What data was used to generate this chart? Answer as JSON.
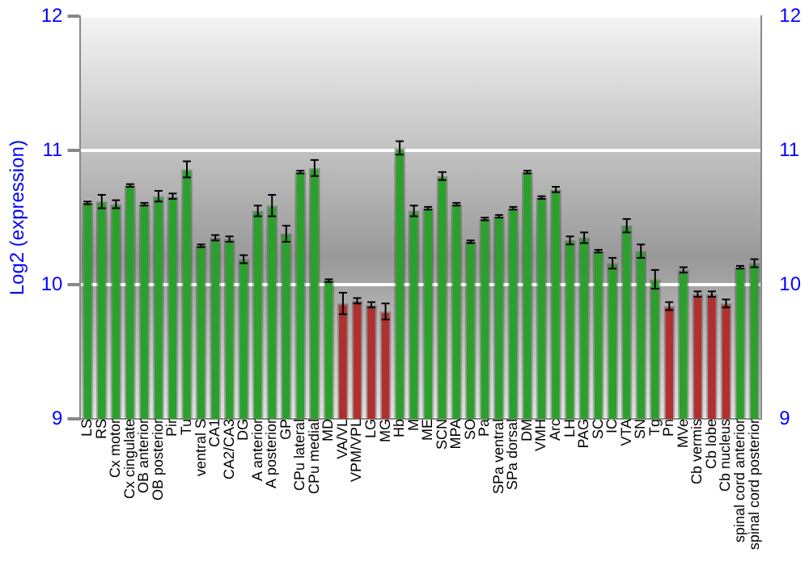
{
  "chart_data": {
    "type": "bar",
    "ylabel": "Log2 (expression)",
    "categories": [
      "LS",
      "RS",
      "Cx motor",
      "Cx cingulate",
      "OB anterior",
      "OB posterior",
      "Pir",
      "Tu",
      "ventral S",
      "CA1",
      "CA2/CA3",
      "DG",
      "A anterior",
      "A posterior",
      "GP",
      "CPu lateral",
      "CPu medial",
      "MD",
      "VA/VL",
      "VPM/VPL",
      "LG",
      "MG",
      "Hb",
      "M",
      "ME",
      "SCN",
      "MPA",
      "SO",
      "Pa",
      "SPa ventral",
      "SPa dorsal",
      "DM",
      "VMH",
      "Arc",
      "LH",
      "PAG",
      "SC",
      "IC",
      "VTA",
      "SN",
      "Tg",
      "Pn",
      "MVe",
      "Cb vermis",
      "Cb lobe",
      "Cb nucleus",
      "spinal cord anterior",
      "spinal cord posterior"
    ],
    "values": [
      10.61,
      10.62,
      10.6,
      10.74,
      10.6,
      10.66,
      10.66,
      10.86,
      10.29,
      10.35,
      10.34,
      10.19,
      10.55,
      10.59,
      10.38,
      10.84,
      10.87,
      10.03,
      9.86,
      9.88,
      9.85,
      9.8,
      11.02,
      10.55,
      10.57,
      10.81,
      10.6,
      10.32,
      10.49,
      10.51,
      10.57,
      10.84,
      10.65,
      10.71,
      10.33,
      10.35,
      10.25,
      10.16,
      10.44,
      10.25,
      10.04,
      9.84,
      10.11,
      9.93,
      9.93,
      9.86,
      10.13,
      10.16
    ],
    "errors": [
      0.01,
      0.05,
      0.03,
      0.01,
      0.01,
      0.04,
      0.02,
      0.06,
      0.01,
      0.02,
      0.02,
      0.03,
      0.04,
      0.08,
      0.06,
      0.01,
      0.06,
      0.01,
      0.08,
      0.02,
      0.02,
      0.06,
      0.05,
      0.04,
      0.01,
      0.03,
      0.01,
      0.01,
      0.01,
      0.01,
      0.01,
      0.01,
      0.01,
      0.02,
      0.03,
      0.04,
      0.01,
      0.04,
      0.05,
      0.05,
      0.07,
      0.03,
      0.02,
      0.02,
      0.02,
      0.03,
      0.01,
      0.03
    ],
    "colors": [
      "#2ca02c",
      "#2ca02c",
      "#2ca02c",
      "#2ca02c",
      "#2ca02c",
      "#2ca02c",
      "#2ca02c",
      "#2ca02c",
      "#2ca02c",
      "#2ca02c",
      "#2ca02c",
      "#2ca02c",
      "#2ca02c",
      "#2ca02c",
      "#2ca02c",
      "#2ca02c",
      "#2ca02c",
      "#2ca02c",
      "#b03030",
      "#b03030",
      "#b03030",
      "#b03030",
      "#2ca02c",
      "#2ca02c",
      "#2ca02c",
      "#2ca02c",
      "#2ca02c",
      "#2ca02c",
      "#2ca02c",
      "#2ca02c",
      "#2ca02c",
      "#2ca02c",
      "#2ca02c",
      "#2ca02c",
      "#2ca02c",
      "#2ca02c",
      "#2ca02c",
      "#2ca02c",
      "#2ca02c",
      "#2ca02c",
      "#2ca02c",
      "#b03030",
      "#2ca02c",
      "#b03030",
      "#b03030",
      "#b03030",
      "#2ca02c",
      "#2ca02c"
    ],
    "ylim": [
      9,
      12
    ],
    "yticks": [
      9,
      10,
      11,
      12
    ],
    "y2lim": [
      9,
      12
    ],
    "y2ticks": [
      9,
      10,
      11,
      12
    ],
    "grid": "y"
  }
}
